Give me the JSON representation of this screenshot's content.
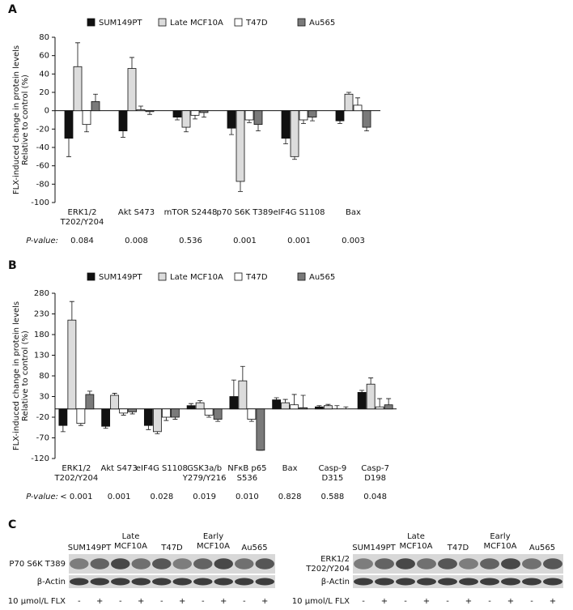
{
  "panels": [
    "A",
    "B",
    "C"
  ],
  "chart_data": [
    {
      "type": "bar",
      "categories": [
        "ERK1/2\nT202/Y204",
        "Akt S473",
        "mTOR S2448",
        "p70 S6K T389",
        "eIF4G S1108",
        "Bax"
      ],
      "series": [
        {
          "name": "SUM149PT",
          "color": "#111111",
          "values": [
            -30,
            -22,
            -7,
            -19,
            -30,
            -11
          ],
          "errors": [
            20,
            7,
            3,
            7,
            6,
            3
          ]
        },
        {
          "name": "Late MCF10A",
          "color": "#dcdcdc",
          "values": [
            48,
            46,
            -18,
            -77,
            -50,
            18
          ],
          "errors": [
            26,
            12,
            5,
            11,
            3,
            2
          ]
        },
        {
          "name": "T47D",
          "color": "#ffffff",
          "values": [
            -15,
            1,
            -5,
            -10,
            -10,
            6
          ],
          "errors": [
            8,
            4,
            4,
            3,
            4,
            8
          ]
        },
        {
          "name": "Au565",
          "color": "#7a7a7a",
          "values": [
            10,
            -1,
            -2,
            -15,
            -7,
            -18
          ],
          "errors": [
            8,
            3,
            5,
            7,
            4,
            4
          ]
        }
      ],
      "ylim": [
        -100,
        80
      ],
      "yticks": [
        -100,
        -80,
        -60,
        -40,
        -20,
        0,
        20,
        40,
        60,
        80
      ],
      "ylabel": [
        "FLX-induced change in protein levels",
        "Relative to control (%)"
      ],
      "pvalue_label": "P-value:",
      "pvalues": [
        "0.084",
        "0.008",
        "0.536",
        "0.001",
        "0.001",
        "0.003"
      ]
    },
    {
      "type": "bar",
      "categories": [
        "ERK1/2\nT202/Y204",
        "Akt S473",
        "eIF4G S1108",
        "GSK3a/b\nY279/Y216",
        "NFκB p65\nS536",
        "Bax",
        "Casp-9\nD315",
        "Casp-7\nD198"
      ],
      "series": [
        {
          "name": "SUM149PT",
          "color": "#111111",
          "values": [
            -40,
            -42,
            -40,
            8,
            30,
            22,
            5,
            40
          ],
          "errors": [
            15,
            5,
            10,
            5,
            40,
            5,
            3,
            5
          ]
        },
        {
          "name": "Late MCF10A",
          "color": "#dcdcdc",
          "values": [
            215,
            33,
            -55,
            15,
            68,
            15,
            8,
            60
          ],
          "errors": [
            45,
            5,
            5,
            5,
            35,
            8,
            3,
            15
          ]
        },
        {
          "name": "T47D",
          "color": "#ffffff",
          "values": [
            -35,
            -10,
            -20,
            -15,
            -25,
            10,
            0,
            5
          ],
          "errors": [
            5,
            5,
            8,
            5,
            5,
            25,
            8,
            20
          ]
        },
        {
          "name": "Au565",
          "color": "#7a7a7a",
          "values": [
            35,
            -7,
            -20,
            -25,
            -100,
            3,
            0,
            10
          ],
          "errors": [
            8,
            5,
            5,
            5,
            0,
            30,
            5,
            15
          ]
        }
      ],
      "ylim": [
        -120,
        280
      ],
      "yticks": [
        -120,
        -70,
        -20,
        30,
        80,
        130,
        180,
        230,
        280
      ],
      "ylabel": [
        "FLX-induced change in protein levels",
        "Relative to control (%)"
      ],
      "pvalue_label": "P-value:",
      "pvalues": [
        "< 0.001",
        "0.001",
        "0.028",
        "0.019",
        "0.010",
        "0.828",
        "0.588",
        "0.048"
      ]
    }
  ],
  "blots": [
    {
      "lanes": [
        "SUM149PT",
        "Late\nMCF10A",
        "T47D",
        "Early\nMCF10A",
        "Au565"
      ],
      "rows": [
        "P70 S6K T389",
        "β-Actin"
      ],
      "treatment": "10 µmol/L FLX",
      "signs": [
        "-",
        "+",
        "-",
        "+",
        "-",
        "+",
        "-",
        "+",
        "-",
        "+"
      ]
    },
    {
      "lanes": [
        "SUM149PT",
        "Late\nMCF10A",
        "T47D",
        "Early\nMCF10A",
        "Au565"
      ],
      "rows": [
        "ERK1/2\nT202/Y204",
        "β-Actin"
      ],
      "treatment": "10 µmol/L FLX",
      "signs": [
        "-",
        "+",
        "-",
        "+",
        "-",
        "+",
        "-",
        "+",
        "-",
        "+"
      ]
    }
  ]
}
